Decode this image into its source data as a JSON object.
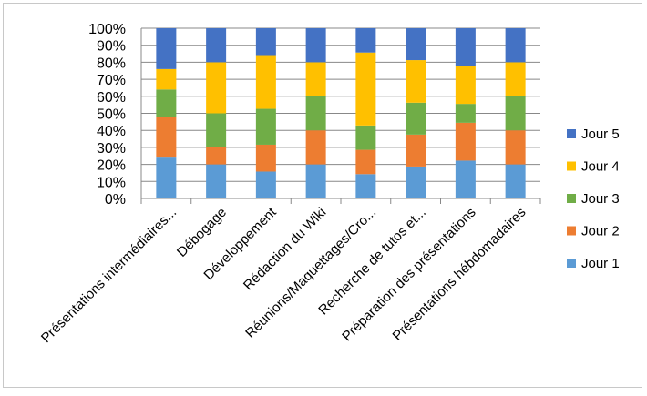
{
  "chart_data": {
    "type": "bar",
    "stacking": "percent",
    "categories": [
      "Présentations intermédiaires...",
      "Débogage",
      "Développement",
      "Rédaction du Wiki",
      "Réunions/Maquettages/Cro...",
      "Recherche de tutos et...",
      "Préparation des présentations",
      "Présentations hébdomadaires"
    ],
    "series": [
      {
        "name": "Jour 1",
        "color": "#5B9BD5",
        "values": [
          24,
          20,
          15.8,
          20,
          14.3,
          18.75,
          22.2,
          20
        ]
      },
      {
        "name": "Jour 2",
        "color": "#ED7D31",
        "values": [
          24,
          10,
          15.8,
          20,
          14.3,
          18.75,
          22.2,
          20
        ]
      },
      {
        "name": "Jour 3",
        "color": "#70AD47",
        "values": [
          16,
          20,
          21.1,
          20,
          14.3,
          18.75,
          11.1,
          20
        ]
      },
      {
        "name": "Jour 4",
        "color": "#FFC000",
        "values": [
          12,
          30,
          31.6,
          20,
          42.9,
          25,
          22.2,
          20
        ]
      },
      {
        "name": "Jour 5",
        "color": "#4472C4",
        "values": [
          24,
          20,
          15.8,
          20,
          14.3,
          18.75,
          22.2,
          20
        ]
      }
    ],
    "yticks": [
      "0%",
      "10%",
      "20%",
      "30%",
      "40%",
      "50%",
      "60%",
      "70%",
      "80%",
      "90%",
      "100%"
    ],
    "ylim": [
      0,
      100
    ],
    "grid": true,
    "legend": "right"
  }
}
